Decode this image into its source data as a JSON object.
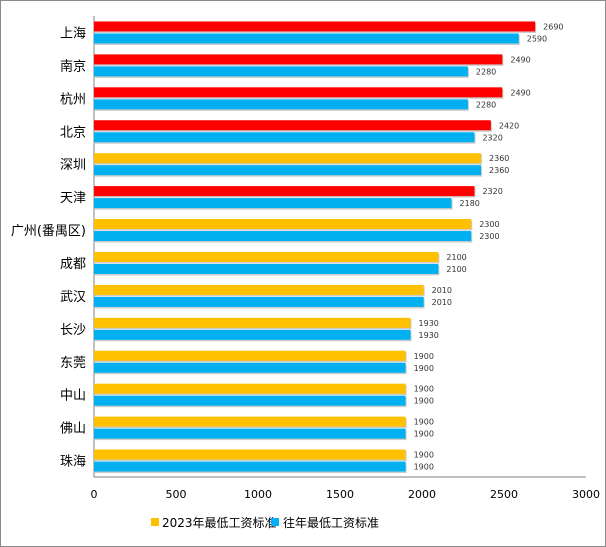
{
  "chart_data": {
    "type": "bar",
    "orientation": "horizontal",
    "categories": [
      "上海",
      "南京",
      "杭州",
      "北京",
      "深圳",
      "天津",
      "广州(番禺区)",
      "成都",
      "武汉",
      "长沙",
      "东莞",
      "中山",
      "佛山",
      "珠海"
    ],
    "series": [
      {
        "name": "2023年最低工资标准",
        "values": [
          2690,
          2490,
          2490,
          2420,
          2360,
          2320,
          2300,
          2100,
          2010,
          1930,
          1900,
          1900,
          1900,
          1900
        ],
        "color": "#FFC000",
        "increase_color": "#FF0000"
      },
      {
        "name": "往年最低工资标准",
        "values": [
          2590,
          2280,
          2280,
          2320,
          2360,
          2180,
          2300,
          2100,
          2010,
          1930,
          1900,
          1900,
          1900,
          1900
        ],
        "color": "#00B0F0"
      }
    ],
    "xlim": [
      0,
      3000
    ],
    "xticks": [
      0,
      500,
      1000,
      1500,
      2000,
      2500,
      3000
    ],
    "grid": false,
    "data_labels": true,
    "legend": "bottom",
    "title": "",
    "xlabel": "",
    "ylabel": ""
  }
}
